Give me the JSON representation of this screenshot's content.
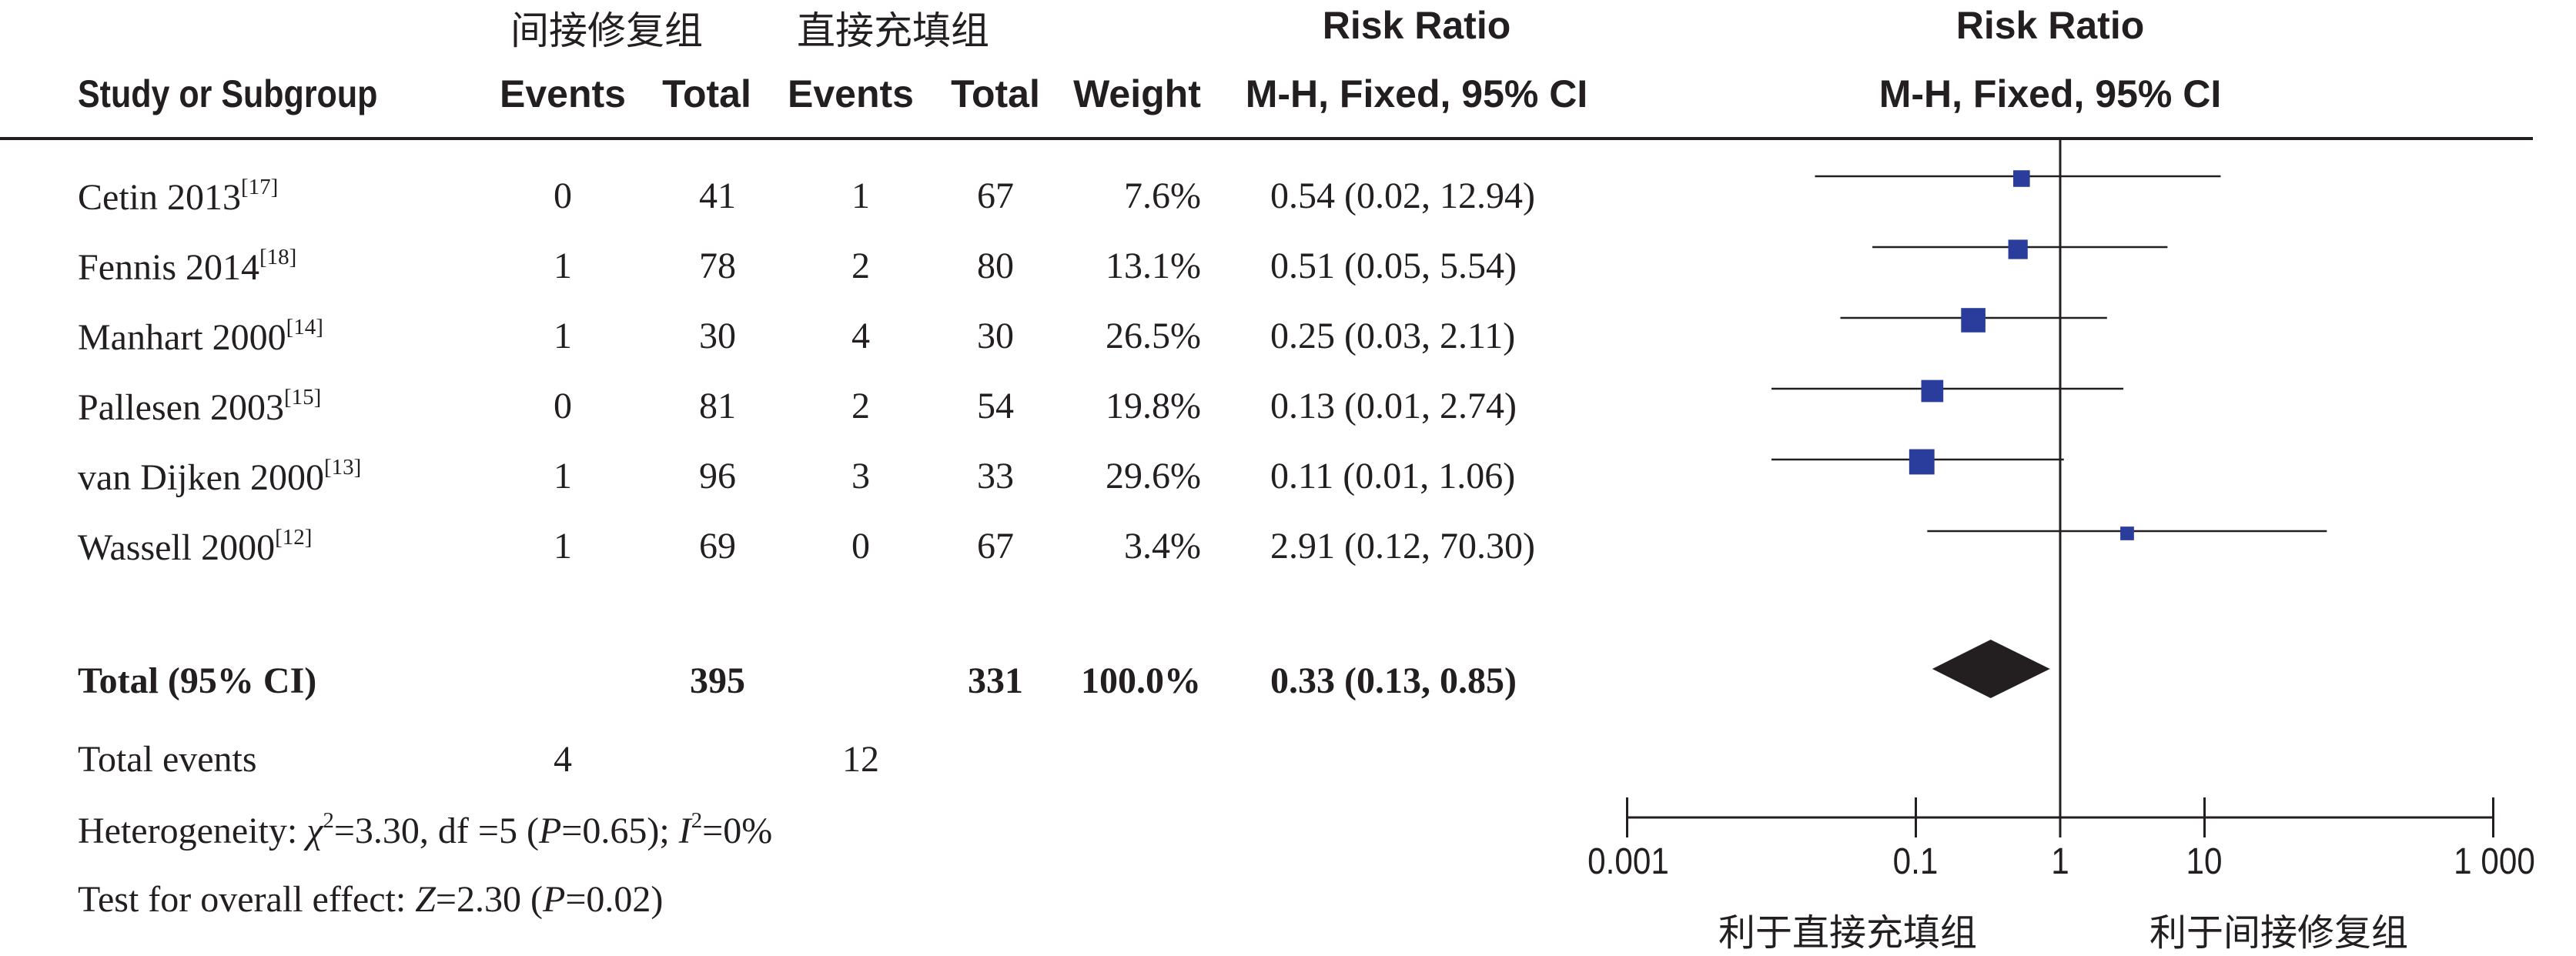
{
  "header": {
    "group_left": "间接修复组",
    "group_right": "直接充填组",
    "study": "Study or Subgroup",
    "events": "Events",
    "total": "Total",
    "weight": "Weight",
    "rr_title": "Risk Ratio",
    "rr_method": "M-H, Fixed, 95% CI"
  },
  "rows": [
    {
      "name": "Cetin 2013",
      "ref": "[17]",
      "e1": "0",
      "n1": "41",
      "e2": "1",
      "n2": "67",
      "weight": "7.6%",
      "ci": "0.54 (0.02, 12.94)"
    },
    {
      "name": "Fennis 2014",
      "ref": "[18]",
      "e1": "1",
      "n1": "78",
      "e2": "2",
      "n2": "80",
      "weight": "13.1%",
      "ci": "0.51 (0.05, 5.54)"
    },
    {
      "name": "Manhart 2000",
      "ref": "[14]",
      "e1": "1",
      "n1": "30",
      "e2": "4",
      "n2": "30",
      "weight": "26.5%",
      "ci": "0.25 (0.03, 2.11)"
    },
    {
      "name": "Pallesen 2003",
      "ref": "[15]",
      "e1": "0",
      "n1": "81",
      "e2": "2",
      "n2": "54",
      "weight": "19.8%",
      "ci": "0.13 (0.01, 2.74)"
    },
    {
      "name": "van Dijken 2000",
      "ref": "[13]",
      "e1": "1",
      "n1": "96",
      "e2": "3",
      "n2": "33",
      "weight": "29.6%",
      "ci": "0.11 (0.01, 1.06)"
    },
    {
      "name": "Wassell 2000",
      "ref": "[12]",
      "e1": "1",
      "n1": "69",
      "e2": "0",
      "n2": "67",
      "weight": "3.4%",
      "ci": "2.91 (0.12, 70.30)"
    }
  ],
  "total": {
    "label": "Total (95% CI)",
    "n1": "395",
    "n2": "331",
    "weight": "100.0%",
    "ci": "0.33 (0.13, 0.85)"
  },
  "total_events": {
    "label": "Total events",
    "e1": "4",
    "e2": "12"
  },
  "heterogeneity": {
    "prefix": "Heterogeneity: ",
    "chi": "χ",
    "chi_sup": "2",
    "chi_rest": "=3.30, df =5 (",
    "p": "P",
    "p_rest": "=0.65); ",
    "i": "I",
    "i_sup": "2",
    "i_rest": "=0%"
  },
  "overall": {
    "prefix": "Test for overall effect: ",
    "z": "Z",
    "z_rest": "=2.30 (",
    "p": "P",
    "p_rest": "=0.02)"
  },
  "axis": {
    "ticks": [
      "0.001",
      "0.1",
      "1",
      "10",
      "1 000"
    ],
    "favours_left": "利于直接充填组",
    "favours_right": "利于间接修复组"
  },
  "chart_data": {
    "type": "forest",
    "scale": "log",
    "xlim": [
      0.001,
      1000
    ],
    "ticks": [
      0.001,
      0.1,
      1,
      10,
      1000
    ],
    "studies": [
      {
        "name": "Cetin 2013",
        "rr": 0.54,
        "lo": 0.02,
        "hi": 12.94,
        "weight": 7.6
      },
      {
        "name": "Fennis 2014",
        "rr": 0.51,
        "lo": 0.05,
        "hi": 5.54,
        "weight": 13.1
      },
      {
        "name": "Manhart 2000",
        "rr": 0.25,
        "lo": 0.03,
        "hi": 2.11,
        "weight": 26.5
      },
      {
        "name": "Pallesen 2003",
        "rr": 0.13,
        "lo": 0.01,
        "hi": 2.74,
        "weight": 19.8
      },
      {
        "name": "van Dijken 2000",
        "rr": 0.11,
        "lo": 0.01,
        "hi": 1.06,
        "weight": 29.6
      },
      {
        "name": "Wassell 2000",
        "rr": 2.91,
        "lo": 0.12,
        "hi": 70.3,
        "weight": 3.4
      }
    ],
    "pooled": {
      "rr": 0.33,
      "lo": 0.13,
      "hi": 0.85
    },
    "colors": {
      "square": "#2b3d9c",
      "diamond": "#231f20",
      "line": "#231f20"
    }
  }
}
